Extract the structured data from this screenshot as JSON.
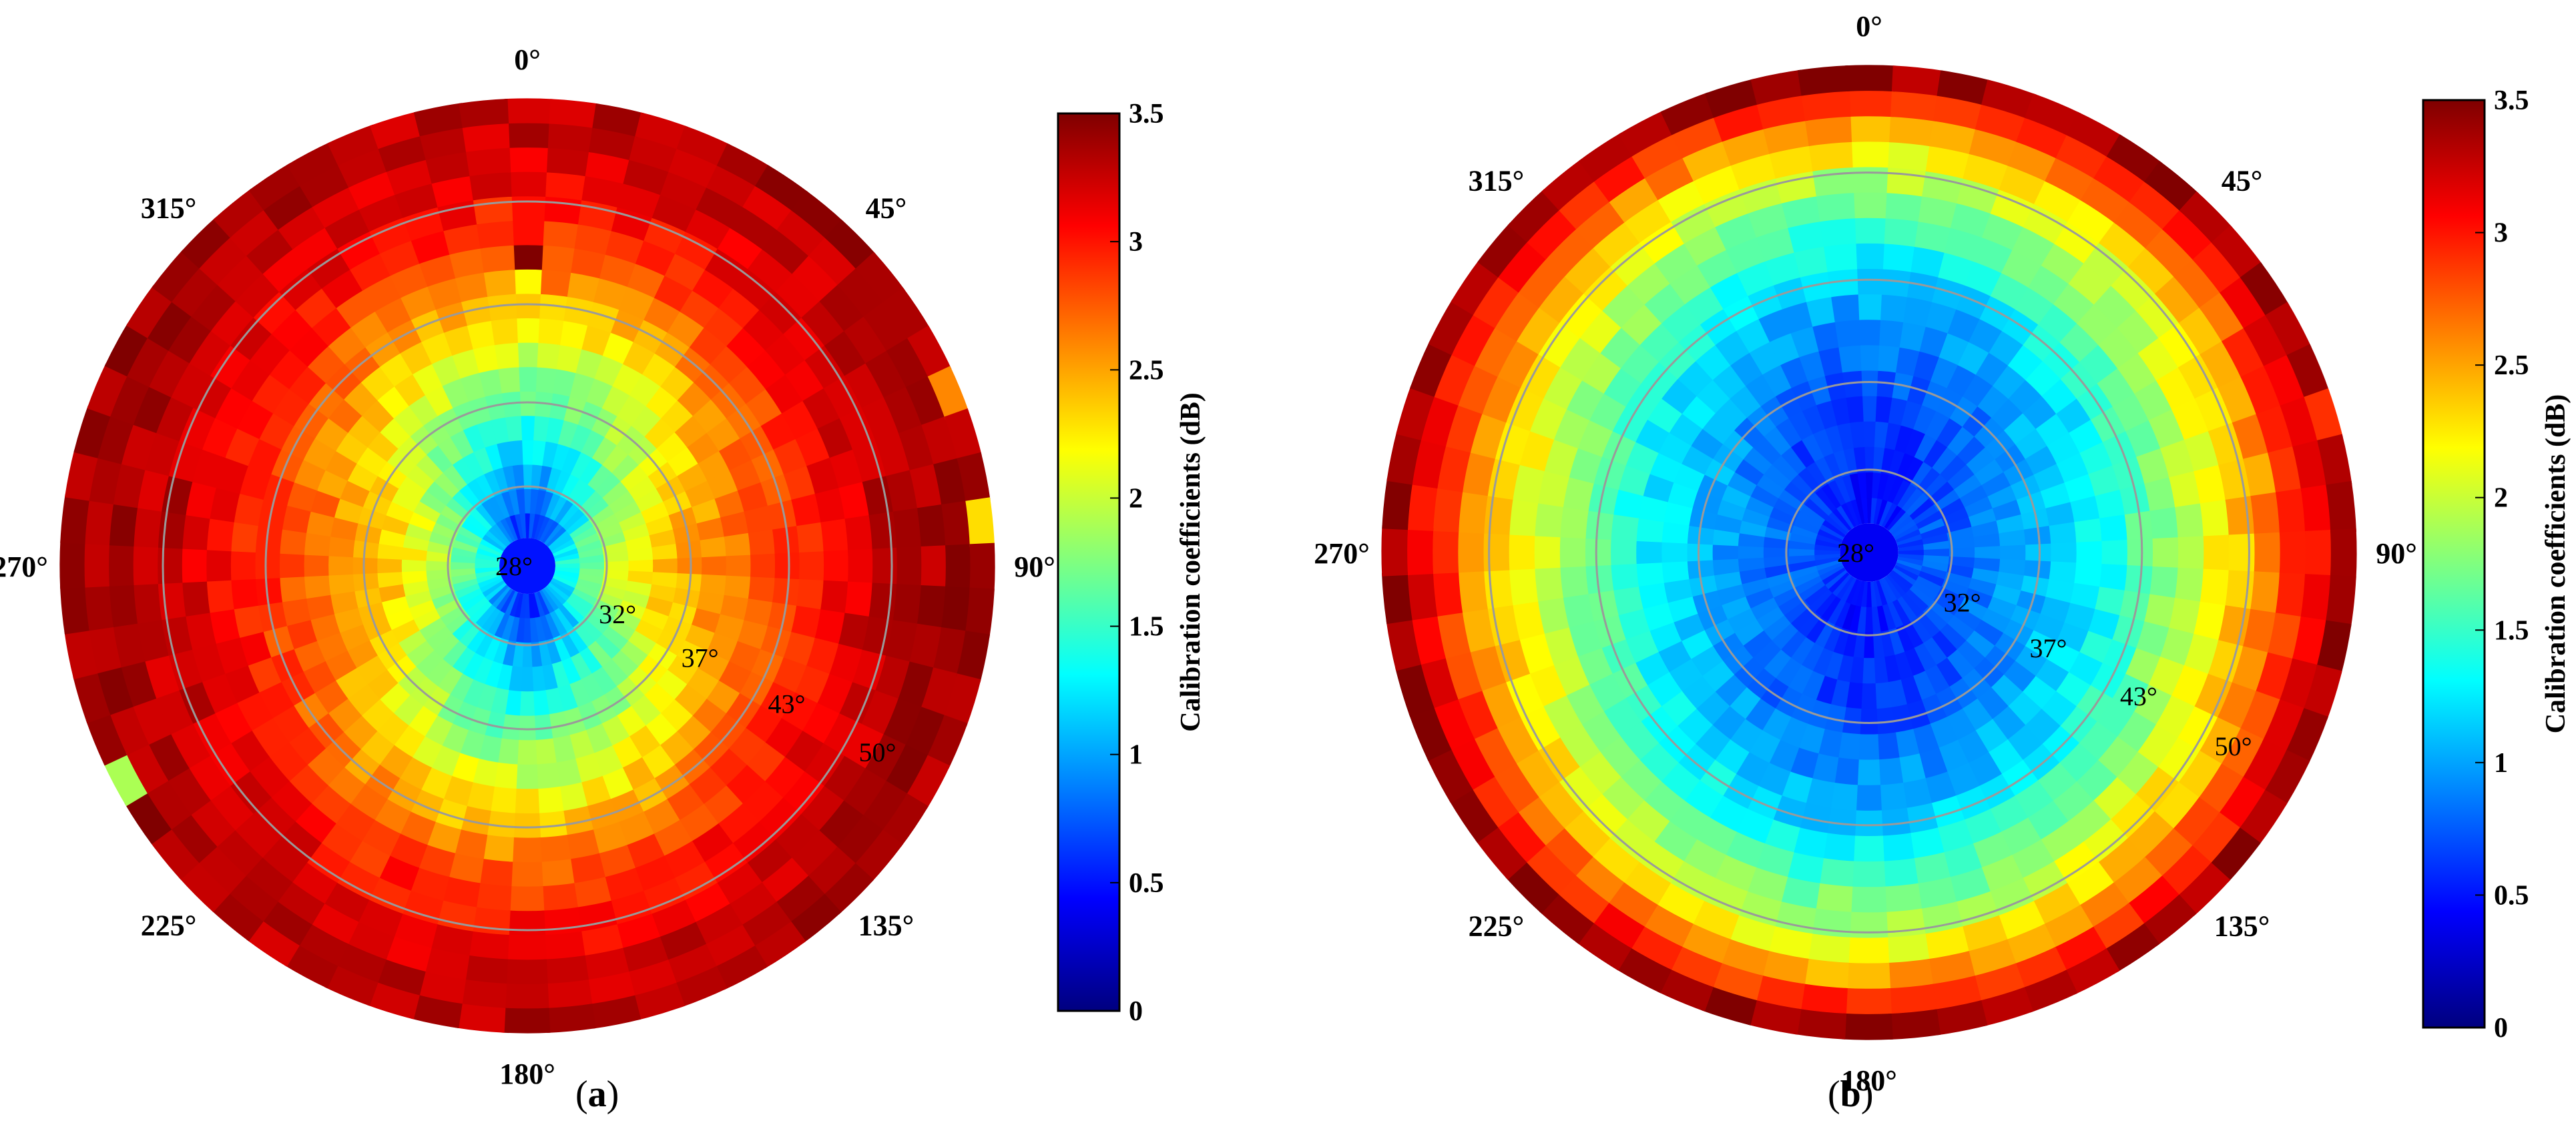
{
  "chart_data": [
    {
      "type": "heatmap",
      "subtype": "polar",
      "panel_label": "a",
      "angular_ticks": [
        "0°",
        "45°",
        "90°",
        "135°",
        "180°",
        "225°",
        "270°",
        "315°"
      ],
      "radial_rings": [
        "28°",
        "32°",
        "37°",
        "43°",
        "50°"
      ],
      "colorbar": {
        "label": "Calibration coefficients (dB)",
        "ticks": [
          "0",
          "0.5",
          "1",
          "1.5",
          "2",
          "2.5",
          "3",
          "3.5"
        ],
        "range": [
          0,
          3.5
        ],
        "colormap": "jet"
      },
      "ring_values": [
        0.6,
        0.8,
        1.0,
        1.2,
        1.4,
        1.6,
        1.8,
        2.0,
        2.2,
        2.4,
        2.6,
        2.8,
        2.9,
        3.0,
        3.1,
        3.2,
        3.25,
        3.3
      ],
      "side_band_values": [
        1.4,
        1.7,
        2.0,
        2.2,
        2.4,
        2.5,
        2.6,
        2.7,
        2.8,
        2.9,
        3.0,
        3.1,
        3.2,
        3.3,
        3.3,
        3.35,
        3.4,
        3.4
      ],
      "outliers": [
        {
          "angle_deg": 243,
          "ring": 17,
          "value": 1.9
        },
        {
          "angle_deg": 69,
          "ring": 17,
          "value": 2.6
        },
        {
          "angle_deg": 86,
          "ring": 17,
          "value": 2.3
        },
        {
          "angle_deg": 0,
          "ring": 11,
          "value": 3.5
        },
        {
          "angle_deg": 0,
          "ring": 10,
          "value": 2.2
        }
      ]
    },
    {
      "type": "heatmap",
      "subtype": "polar",
      "panel_label": "b",
      "angular_ticks": [
        "0°",
        "45°",
        "90°",
        "135°",
        "180°",
        "225°",
        "270°",
        "315°"
      ],
      "radial_rings": [
        "28°",
        "32°",
        "37°",
        "43°",
        "50°"
      ],
      "colorbar": {
        "label": "Calibration coefficients (dB)",
        "ticks": [
          "0",
          "0.5",
          "1",
          "1.5",
          "2",
          "2.5",
          "3",
          "3.5"
        ],
        "range": [
          0,
          3.5
        ],
        "colormap": "jet"
      },
      "ring_values": [
        0.5,
        0.5,
        0.55,
        0.6,
        0.65,
        0.7,
        0.8,
        0.9,
        1.0,
        1.15,
        1.3,
        1.5,
        1.7,
        1.9,
        2.2,
        2.5,
        2.9,
        3.4
      ],
      "side_band_values": [
        0.7,
        0.75,
        0.8,
        0.9,
        1.0,
        1.1,
        1.2,
        1.3,
        1.4,
        1.6,
        1.8,
        2.0,
        2.2,
        2.4,
        2.6,
        2.9,
        3.1,
        3.4
      ],
      "outliers": [
        {
          "angle_deg": 75,
          "ring": 17,
          "value": 2.9
        },
        {
          "angle_deg": 82,
          "ring": 17,
          "value": 3.4
        }
      ]
    }
  ]
}
